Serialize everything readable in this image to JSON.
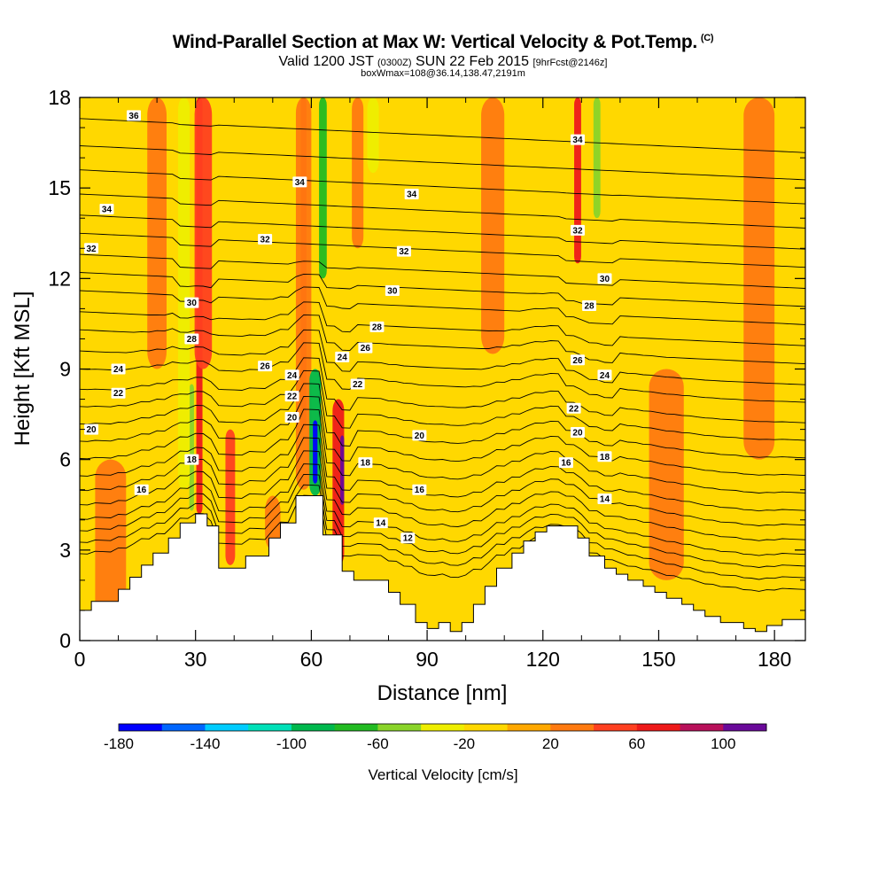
{
  "header": {
    "title": "Wind-Parallel Section at Max W: Vertical Velocity & Pot.Temp.",
    "copyright": "(C)",
    "valid_main": "Valid 1200 JST",
    "valid_utc": "(0300Z)",
    "valid_date": "SUN 22 Feb 2015",
    "forecast": "[9hrFcst@2146z]",
    "box_info": "boxWmax=108@36.14,138.47,2191m"
  },
  "chart_data": {
    "type": "heatmap",
    "title": "Wind-Parallel Section at Max W: Vertical Velocity & Pot.Temp.",
    "xlabel": "Distance [nm]",
    "ylabel": "Height [Kft MSL]",
    "xlim": [
      0,
      188
    ],
    "ylim": [
      0,
      18
    ],
    "xticks": [
      0,
      30,
      60,
      90,
      120,
      150,
      180
    ],
    "yticks": [
      0,
      3,
      6,
      9,
      12,
      15,
      18
    ],
    "colorbar": {
      "title": "Vertical Velocity [cm/s]",
      "levels": [
        -180,
        -160,
        -140,
        -120,
        -100,
        -80,
        -60,
        -40,
        -20,
        0,
        20,
        40,
        60,
        80,
        100,
        120
      ],
      "labels": [
        -180,
        -140,
        -100,
        -60,
        -20,
        20,
        60,
        100
      ],
      "colors": [
        "#0000ff",
        "#0066ff",
        "#00ccff",
        "#00e0b8",
        "#00b84d",
        "#22bb22",
        "#8ad42a",
        "#eeee00",
        "#ffd800",
        "#ffa800",
        "#ff7a10",
        "#ff4020",
        "#ee1a1a",
        "#b8105a",
        "#6a0a9a"
      ]
    },
    "background_value_color": "#ffd800",
    "terrain": {
      "x": [
        0,
        3,
        3,
        10,
        10,
        13,
        13,
        16,
        16,
        19,
        19,
        23,
        23,
        26,
        26,
        30,
        30,
        33,
        33,
        36,
        36,
        43,
        43,
        49,
        49,
        52,
        52,
        56,
        56,
        59,
        59,
        63,
        63,
        68,
        68,
        71,
        71,
        80,
        80,
        83,
        83,
        87,
        87,
        90,
        90,
        93,
        93,
        96,
        96,
        99,
        99,
        102,
        102,
        105,
        105,
        108,
        108,
        112,
        112,
        115,
        115,
        118,
        118,
        121,
        121,
        125,
        125,
        129,
        129,
        132,
        132,
        136,
        136,
        139,
        139,
        142,
        142,
        146,
        146,
        149,
        149,
        152,
        152,
        156,
        156,
        159,
        159,
        162,
        162,
        166,
        166,
        172,
        172,
        175,
        175,
        178,
        178,
        182,
        182,
        188
      ],
      "y": [
        1.0,
        1.0,
        1.3,
        1.3,
        1.7,
        1.7,
        2.1,
        2.1,
        2.5,
        2.5,
        2.9,
        2.9,
        3.4,
        3.4,
        3.9,
        3.9,
        4.2,
        4.2,
        3.8,
        3.8,
        2.4,
        2.4,
        2.8,
        2.8,
        3.4,
        3.4,
        3.9,
        3.9,
        4.8,
        4.8,
        4.8,
        4.8,
        3.5,
        3.5,
        2.3,
        2.3,
        2.0,
        2.0,
        1.6,
        1.6,
        1.2,
        1.2,
        0.6,
        0.6,
        0.4,
        0.4,
        0.6,
        0.6,
        0.3,
        0.3,
        0.6,
        0.6,
        1.2,
        1.2,
        1.8,
        1.8,
        2.4,
        2.4,
        2.9,
        2.9,
        3.3,
        3.3,
        3.6,
        3.6,
        3.8,
        3.8,
        3.8,
        3.8,
        3.4,
        3.4,
        2.8,
        2.8,
        2.4,
        2.4,
        2.2,
        2.2,
        2.0,
        2.0,
        1.8,
        1.8,
        1.6,
        1.6,
        1.4,
        1.4,
        1.2,
        1.2,
        1.0,
        1.0,
        0.8,
        0.8,
        0.6,
        0.6,
        0.4,
        0.4,
        0.3,
        0.3,
        0.5,
        0.5,
        0.7,
        0.7
      ]
    },
    "w_features": [
      {
        "x": 31,
        "y0": 4.2,
        "y1": 18,
        "w": 1.6,
        "value": 70
      },
      {
        "x": 32,
        "y0": 9,
        "y1": 18,
        "w": 4.5,
        "value": 40
      },
      {
        "x": 29,
        "y0": 4.3,
        "y1": 8.5,
        "w": 1.2,
        "value": -60
      },
      {
        "x": 27,
        "y0": 5,
        "y1": 18,
        "w": 3,
        "value": -25
      },
      {
        "x": 39,
        "y0": 2.5,
        "y1": 7,
        "w": 2.5,
        "value": 40
      },
      {
        "x": 58,
        "y0": 7,
        "y1": 18,
        "w": 1.5,
        "value": 60
      },
      {
        "x": 58,
        "y0": 5,
        "y1": 18,
        "w": 4,
        "value": 35
      },
      {
        "x": 63,
        "y0": 12,
        "y1": 18,
        "w": 2,
        "value": -70
      },
      {
        "x": 61,
        "y0": 4.8,
        "y1": 9,
        "w": 3,
        "value": -90
      },
      {
        "x": 61,
        "y0": 5.2,
        "y1": 7.3,
        "w": 1.2,
        "value": -170
      },
      {
        "x": 67,
        "y0": 2.5,
        "y1": 8,
        "w": 3,
        "value": 70
      },
      {
        "x": 68,
        "y0": 4.5,
        "y1": 6.8,
        "w": 1,
        "value": 115
      },
      {
        "x": 72,
        "y0": 13,
        "y1": 18,
        "w": 3,
        "value": 35
      },
      {
        "x": 76,
        "y0": 15.5,
        "y1": 18,
        "w": 3,
        "value": -30
      },
      {
        "x": 107,
        "y0": 9.5,
        "y1": 18,
        "w": 6,
        "value": 35
      },
      {
        "x": 129,
        "y0": 12.5,
        "y1": 18,
        "w": 1.8,
        "value": 65
      },
      {
        "x": 134,
        "y0": 14,
        "y1": 18,
        "w": 1.8,
        "value": -60
      },
      {
        "x": 152,
        "y0": 2,
        "y1": 9,
        "w": 9,
        "value": 30
      },
      {
        "x": 176,
        "y0": 6,
        "y1": 18,
        "w": 8,
        "value": 30
      },
      {
        "x": 8,
        "y0": 0.7,
        "y1": 6,
        "w": 8,
        "value": 30
      },
      {
        "x": 20,
        "y0": 9,
        "y1": 18,
        "w": 5,
        "value": 30
      },
      {
        "x": 50,
        "y0": 3,
        "y1": 4.8,
        "w": 4,
        "value": 30
      }
    ],
    "isentropes": {
      "levels": [
        12,
        13,
        14,
        15,
        16,
        17,
        18,
        19,
        20,
        21,
        22,
        23,
        24,
        25,
        26,
        27,
        28,
        29,
        30,
        31,
        32,
        33,
        34,
        35,
        36
      ],
      "base_height": [
        2.6,
        3.0,
        3.4,
        3.8,
        4.3,
        4.8,
        5.3,
        5.9,
        6.5,
        7.1,
        7.7,
        8.3,
        9.0,
        9.6,
        10.3,
        10.9,
        11.6,
        12.2,
        12.8,
        13.5,
        14.1,
        14.8,
        15.6,
        16.4,
        17.3
      ],
      "gradient_per_nm": -0.006,
      "labels": [
        {
          "text": "36",
          "x": 14,
          "y": 17.4
        },
        {
          "text": "34",
          "x": 7,
          "y": 14.3
        },
        {
          "text": "32",
          "x": 3,
          "y": 13.0
        },
        {
          "text": "30",
          "x": 29,
          "y": 11.2
        },
        {
          "text": "28",
          "x": 29,
          "y": 10.0
        },
        {
          "text": "24",
          "x": 10,
          "y": 9.0
        },
        {
          "text": "22",
          "x": 10,
          "y": 8.2
        },
        {
          "text": "20",
          "x": 3,
          "y": 7.0
        },
        {
          "text": "18",
          "x": 29,
          "y": 6.0
        },
        {
          "text": "16",
          "x": 16,
          "y": 5.0
        },
        {
          "text": "34",
          "x": 57,
          "y": 15.2
        },
        {
          "text": "34",
          "x": 86,
          "y": 14.8
        },
        {
          "text": "32",
          "x": 48,
          "y": 13.3
        },
        {
          "text": "32",
          "x": 84,
          "y": 12.9
        },
        {
          "text": "30",
          "x": 81,
          "y": 11.6
        },
        {
          "text": "28",
          "x": 77,
          "y": 10.4
        },
        {
          "text": "26",
          "x": 74,
          "y": 9.7
        },
        {
          "text": "26",
          "x": 48,
          "y": 9.1
        },
        {
          "text": "24",
          "x": 55,
          "y": 8.8
        },
        {
          "text": "24",
          "x": 68,
          "y": 9.4
        },
        {
          "text": "22",
          "x": 55,
          "y": 8.1
        },
        {
          "text": "22",
          "x": 72,
          "y": 8.5
        },
        {
          "text": "20",
          "x": 55,
          "y": 7.4
        },
        {
          "text": "20",
          "x": 88,
          "y": 6.8
        },
        {
          "text": "18",
          "x": 74,
          "y": 5.9
        },
        {
          "text": "16",
          "x": 88,
          "y": 5.0
        },
        {
          "text": "14",
          "x": 78,
          "y": 3.9
        },
        {
          "text": "12",
          "x": 85,
          "y": 3.4
        },
        {
          "text": "34",
          "x": 129,
          "y": 16.6
        },
        {
          "text": "32",
          "x": 129,
          "y": 13.6
        },
        {
          "text": "30",
          "x": 136,
          "y": 12.0
        },
        {
          "text": "28",
          "x": 132,
          "y": 11.1
        },
        {
          "text": "26",
          "x": 129,
          "y": 9.3
        },
        {
          "text": "24",
          "x": 136,
          "y": 8.8
        },
        {
          "text": "22",
          "x": 128,
          "y": 7.7
        },
        {
          "text": "20",
          "x": 129,
          "y": 6.9
        },
        {
          "text": "18",
          "x": 136,
          "y": 6.1
        },
        {
          "text": "16",
          "x": 126,
          "y": 5.9
        },
        {
          "text": "14",
          "x": 136,
          "y": 4.7
        }
      ]
    }
  }
}
